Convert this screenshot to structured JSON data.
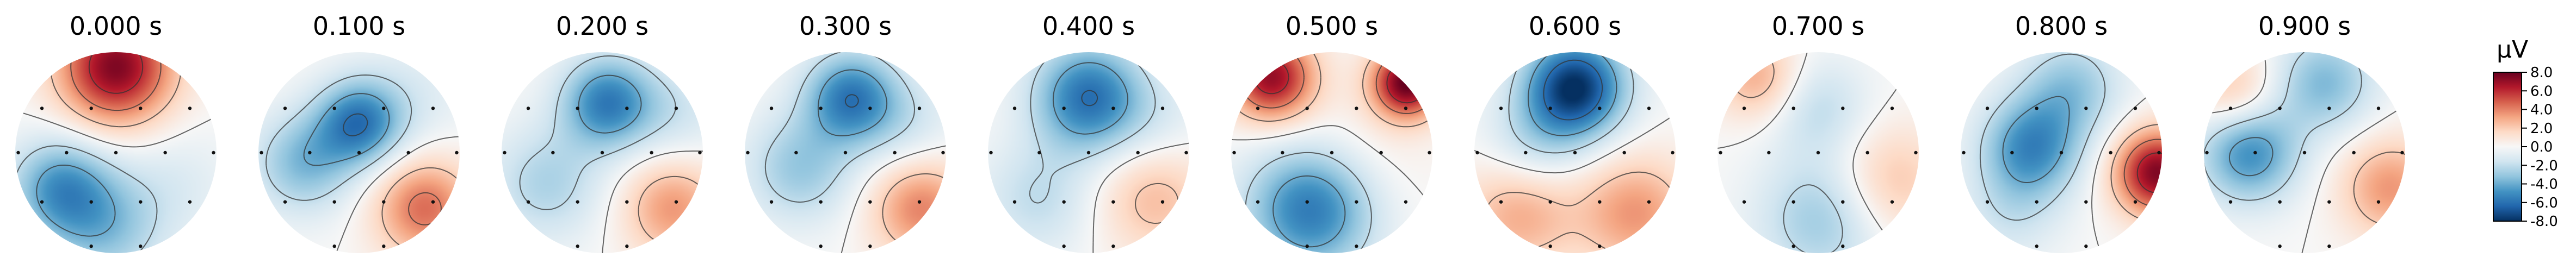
{
  "chart_data": {
    "type": "topomap",
    "times": [
      "0.000 s",
      "0.100 s",
      "0.200 s",
      "0.300 s",
      "0.400 s",
      "0.500 s",
      "0.600 s",
      "0.700 s",
      "0.800 s",
      "0.900 s"
    ],
    "colorbar": {
      "unit": "µV",
      "range": [
        -8.0,
        8.0
      ],
      "ticks": [
        "8.0",
        "6.0",
        "4.0",
        "2.0",
        "0.0",
        "-2.0",
        "-4.0",
        "-6.0",
        "-8.0"
      ],
      "tick_values": [
        8,
        6,
        4,
        2,
        0,
        -2,
        -4,
        -6,
        -8
      ],
      "colormap": "RdBu_r"
    },
    "maps": [
      {
        "sources": [
          [
            0.0,
            -0.85,
            7.5,
            0.4
          ],
          [
            -0.55,
            0.35,
            -4.5,
            0.35
          ],
          [
            -0.1,
            0.75,
            -3.0,
            0.4
          ],
          [
            0.6,
            0.3,
            -1.0,
            0.4
          ]
        ]
      },
      {
        "sources": [
          [
            0.0,
            -0.3,
            -5.5,
            0.3
          ],
          [
            -0.55,
            0.1,
            -3.5,
            0.35
          ],
          [
            0.65,
            0.55,
            4.5,
            0.35
          ],
          [
            0.55,
            -0.55,
            -1.0,
            0.4
          ]
        ]
      },
      {
        "sources": [
          [
            0.05,
            -0.5,
            -5.5,
            0.32
          ],
          [
            -0.55,
            0.3,
            -2.5,
            0.4
          ],
          [
            0.7,
            0.55,
            3.5,
            0.35
          ],
          [
            0.75,
            -0.4,
            -1.5,
            0.35
          ]
        ]
      },
      {
        "sources": [
          [
            0.05,
            -0.55,
            -5.5,
            0.32
          ],
          [
            -0.45,
            0.15,
            -3.0,
            0.38
          ],
          [
            0.75,
            0.55,
            4.0,
            0.35
          ],
          [
            0.6,
            -0.3,
            -1.5,
            0.35
          ]
        ]
      },
      {
        "sources": [
          [
            0.0,
            -0.55,
            -6.0,
            0.38
          ],
          [
            -0.5,
            0.45,
            -2.0,
            0.4
          ],
          [
            0.65,
            0.45,
            2.5,
            0.4
          ],
          [
            0.7,
            -0.3,
            -1.0,
            0.35
          ]
        ]
      },
      {
        "sources": [
          [
            -0.6,
            -0.75,
            7.0,
            0.3
          ],
          [
            0.75,
            -0.7,
            8.0,
            0.25
          ],
          [
            -0.2,
            0.55,
            -6.0,
            0.45
          ],
          [
            0.2,
            0.05,
            1.0,
            0.5
          ]
        ]
      },
      {
        "sources": [
          [
            0.0,
            -0.65,
            -8.0,
            0.35
          ],
          [
            -0.55,
            0.6,
            3.0,
            0.4
          ],
          [
            0.6,
            0.6,
            3.5,
            0.4
          ],
          [
            -0.4,
            -0.1,
            -2.0,
            0.35
          ]
        ]
      },
      {
        "sources": [
          [
            -0.6,
            -0.75,
            3.0,
            0.3
          ],
          [
            0.05,
            0.65,
            -3.0,
            0.45
          ],
          [
            0.7,
            0.3,
            2.5,
            0.4
          ],
          [
            0.0,
            -0.45,
            -2.0,
            0.35
          ]
        ]
      },
      {
        "sources": [
          [
            -0.3,
            -0.05,
            -5.0,
            0.35
          ],
          [
            0.95,
            0.2,
            7.5,
            0.3
          ],
          [
            0.1,
            -0.65,
            -3.0,
            0.35
          ],
          [
            -0.5,
            0.6,
            -1.5,
            0.35
          ]
        ]
      },
      {
        "sources": [
          [
            -0.55,
            0.0,
            -5.0,
            0.35
          ],
          [
            0.2,
            -0.7,
            -3.5,
            0.35
          ],
          [
            -0.7,
            -0.6,
            2.5,
            0.3
          ],
          [
            0.85,
            0.35,
            3.5,
            0.35
          ]
        ]
      }
    ],
    "sensors": [
      [
        -0.75,
        -0.45
      ],
      [
        -0.25,
        -0.45
      ],
      [
        0.25,
        -0.45
      ],
      [
        0.75,
        -0.45
      ],
      [
        -0.99,
        0.0
      ],
      [
        -0.5,
        0.0
      ],
      [
        0.0,
        0.0
      ],
      [
        0.5,
        0.0
      ],
      [
        0.99,
        0.0
      ],
      [
        -0.75,
        0.5
      ],
      [
        -0.25,
        0.5
      ],
      [
        0.25,
        0.5
      ],
      [
        0.75,
        0.5
      ],
      [
        -0.25,
        0.95
      ],
      [
        0.25,
        0.95
      ]
    ]
  }
}
